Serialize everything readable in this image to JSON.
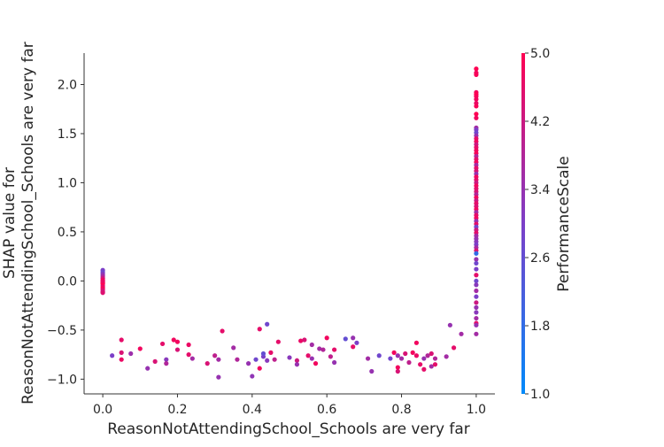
{
  "chart_data": {
    "type": "scatter",
    "title": "",
    "xlabel": "ReasonNotAttendingSchool_Schools are very far",
    "ylabel_lines": [
      "SHAP value for",
      "ReasonNotAttendingSchool_Schools are very far"
    ],
    "xlim": [
      -0.05,
      1.05
    ],
    "ylim": [
      -1.15,
      2.32
    ],
    "xticks": [
      0.0,
      0.2,
      0.4,
      0.6,
      0.8,
      1.0
    ],
    "xtick_labels": [
      "0.0",
      "0.2",
      "0.4",
      "0.6",
      "0.8",
      "1.0"
    ],
    "yticks": [
      -1.0,
      -0.5,
      0.0,
      0.5,
      1.0,
      1.5,
      2.0
    ],
    "ytick_labels": [
      "−1.0",
      "−0.5",
      "0.0",
      "0.5",
      "1.0",
      "1.5",
      "2.0"
    ],
    "grid": false,
    "colorbar": {
      "label": "PerformanceScale",
      "min": 1.0,
      "max": 5.0,
      "ticks": [
        1.0,
        1.8,
        2.6,
        3.4,
        4.2,
        5.0
      ],
      "tick_labels": [
        "1.0",
        "1.8",
        "2.6",
        "3.4",
        "4.2",
        "5.0"
      ],
      "color_low": "#008afb",
      "color_mid": "#7c3fc8",
      "color_high": "#ff0052"
    },
    "points": [
      [
        0.0,
        0.11,
        3.0
      ],
      [
        0.0,
        0.09,
        2.8
      ],
      [
        0.0,
        0.07,
        3.2
      ],
      [
        0.0,
        0.05,
        3.6
      ],
      [
        0.0,
        0.03,
        4.2
      ],
      [
        0.0,
        0.01,
        4.8
      ],
      [
        0.0,
        -0.01,
        4.6
      ],
      [
        0.0,
        -0.03,
        4.8
      ],
      [
        0.0,
        -0.05,
        4.4
      ],
      [
        0.0,
        -0.07,
        4.9
      ],
      [
        0.0,
        -0.09,
        4.6
      ],
      [
        0.0,
        -0.11,
        4.2
      ],
      [
        0.0,
        -0.12,
        4.5
      ],
      [
        0.0,
        -0.02,
        5.0
      ],
      [
        0.0,
        0.0,
        4.7
      ],
      [
        0.025,
        -0.76,
        3.0
      ],
      [
        0.05,
        -0.6,
        4.6
      ],
      [
        0.05,
        -0.73,
        4.4
      ],
      [
        0.05,
        -0.8,
        4.7
      ],
      [
        0.075,
        -0.74,
        3.5
      ],
      [
        0.1,
        -0.69,
        4.8
      ],
      [
        0.12,
        -0.89,
        3.4
      ],
      [
        0.14,
        -0.82,
        4.4
      ],
      [
        0.16,
        -0.64,
        4.6
      ],
      [
        0.17,
        -0.8,
        3.2
      ],
      [
        0.17,
        -0.84,
        3.8
      ],
      [
        0.19,
        -0.6,
        4.8
      ],
      [
        0.2,
        -0.62,
        4.8
      ],
      [
        0.2,
        -0.7,
        4.4
      ],
      [
        0.23,
        -0.65,
        4.7
      ],
      [
        0.23,
        -0.75,
        4.6
      ],
      [
        0.24,
        -0.79,
        3.6
      ],
      [
        0.28,
        -0.84,
        4.4
      ],
      [
        0.3,
        -0.76,
        4.0
      ],
      [
        0.31,
        -0.98,
        3.4
      ],
      [
        0.31,
        -0.8,
        3.6
      ],
      [
        0.32,
        -0.51,
        4.6
      ],
      [
        0.35,
        -0.68,
        3.6
      ],
      [
        0.36,
        -0.8,
        3.8
      ],
      [
        0.39,
        -0.84,
        3.4
      ],
      [
        0.4,
        -0.97,
        3.3
      ],
      [
        0.41,
        -0.8,
        2.8
      ],
      [
        0.42,
        -0.49,
        4.6
      ],
      [
        0.42,
        -0.89,
        4.8
      ],
      [
        0.43,
        -0.77,
        3.0
      ],
      [
        0.43,
        -0.74,
        2.6
      ],
      [
        0.44,
        -0.44,
        2.8
      ],
      [
        0.44,
        -0.81,
        3.2
      ],
      [
        0.45,
        -0.73,
        4.6
      ],
      [
        0.46,
        -0.8,
        4.0
      ],
      [
        0.47,
        -0.62,
        4.6
      ],
      [
        0.5,
        -0.78,
        3.2
      ],
      [
        0.52,
        -0.81,
        4.2
      ],
      [
        0.52,
        -0.85,
        3.4
      ],
      [
        0.53,
        -0.61,
        4.7
      ],
      [
        0.54,
        -0.6,
        4.4
      ],
      [
        0.55,
        -0.76,
        4.6
      ],
      [
        0.56,
        -0.79,
        3.4
      ],
      [
        0.56,
        -0.65,
        3.6
      ],
      [
        0.57,
        -0.84,
        4.8
      ],
      [
        0.58,
        -0.69,
        3.6
      ],
      [
        0.59,
        -0.7,
        3.8
      ],
      [
        0.6,
        -0.58,
        4.8
      ],
      [
        0.61,
        -0.77,
        4.0
      ],
      [
        0.62,
        -0.83,
        3.4
      ],
      [
        0.62,
        -0.7,
        4.6
      ],
      [
        0.65,
        -0.59,
        2.6
      ],
      [
        0.67,
        -0.67,
        4.6
      ],
      [
        0.67,
        -0.58,
        3.4
      ],
      [
        0.68,
        -0.63,
        3.0
      ],
      [
        0.71,
        -0.79,
        3.6
      ],
      [
        0.72,
        -0.92,
        3.4
      ],
      [
        0.74,
        -0.76,
        2.8
      ],
      [
        0.77,
        -0.79,
        2.8
      ],
      [
        0.78,
        -0.73,
        4.8
      ],
      [
        0.79,
        -0.76,
        3.4
      ],
      [
        0.79,
        -0.92,
        4.4
      ],
      [
        0.79,
        -0.88,
        4.8
      ],
      [
        0.8,
        -0.79,
        3.6
      ],
      [
        0.81,
        -0.74,
        4.4
      ],
      [
        0.82,
        -0.83,
        4.0
      ],
      [
        0.83,
        -0.73,
        4.8
      ],
      [
        0.84,
        -0.76,
        4.7
      ],
      [
        0.84,
        -0.63,
        4.8
      ],
      [
        0.85,
        -0.85,
        4.6
      ],
      [
        0.86,
        -0.79,
        3.4
      ],
      [
        0.86,
        -0.9,
        4.6
      ],
      [
        0.87,
        -0.76,
        3.8
      ],
      [
        0.88,
        -0.74,
        4.4
      ],
      [
        0.88,
        -0.87,
        3.6
      ],
      [
        0.89,
        -0.79,
        3.8
      ],
      [
        0.89,
        -0.85,
        4.6
      ],
      [
        0.92,
        -0.77,
        3.6
      ],
      [
        0.93,
        -0.45,
        3.4
      ],
      [
        0.94,
        -0.68,
        4.6
      ],
      [
        0.96,
        -0.54,
        3.6
      ],
      [
        1.0,
        2.16,
        5.0
      ],
      [
        1.0,
        2.12,
        4.8
      ],
      [
        1.0,
        2.1,
        4.9
      ],
      [
        1.0,
        1.92,
        4.8
      ],
      [
        1.0,
        1.9,
        5.0
      ],
      [
        1.0,
        1.88,
        4.9
      ],
      [
        1.0,
        1.85,
        4.8
      ],
      [
        1.0,
        1.81,
        4.7
      ],
      [
        1.0,
        1.78,
        4.9
      ],
      [
        1.0,
        1.7,
        5.0
      ],
      [
        1.0,
        1.66,
        4.8
      ],
      [
        1.0,
        1.56,
        3.6
      ],
      [
        1.0,
        1.54,
        3.0
      ],
      [
        1.0,
        1.51,
        2.8
      ],
      [
        1.0,
        1.48,
        3.4
      ],
      [
        1.0,
        1.45,
        4.6
      ],
      [
        1.0,
        1.42,
        4.8
      ],
      [
        1.0,
        1.39,
        4.2
      ],
      [
        1.0,
        1.36,
        4.6
      ],
      [
        1.0,
        1.33,
        4.8
      ],
      [
        1.0,
        1.3,
        4.9
      ],
      [
        1.0,
        1.27,
        3.8
      ],
      [
        1.0,
        1.24,
        4.6
      ],
      [
        1.0,
        1.21,
        4.8
      ],
      [
        1.0,
        1.18,
        3.6
      ],
      [
        1.0,
        1.15,
        4.6
      ],
      [
        1.0,
        1.12,
        4.4
      ],
      [
        1.0,
        1.09,
        3.4
      ],
      [
        1.0,
        1.06,
        4.8
      ],
      [
        1.0,
        1.03,
        4.6
      ],
      [
        1.0,
        1.0,
        4.2
      ],
      [
        1.0,
        0.97,
        4.8
      ],
      [
        1.0,
        0.94,
        4.6
      ],
      [
        1.0,
        0.91,
        4.4
      ],
      [
        1.0,
        0.88,
        3.8
      ],
      [
        1.0,
        0.85,
        4.8
      ],
      [
        1.0,
        0.82,
        4.2
      ],
      [
        1.0,
        0.79,
        4.6
      ],
      [
        1.0,
        0.76,
        4.4
      ],
      [
        1.0,
        0.73,
        4.8
      ],
      [
        1.0,
        0.7,
        3.6
      ],
      [
        1.0,
        0.67,
        4.6
      ],
      [
        1.0,
        0.64,
        4.8
      ],
      [
        1.0,
        0.61,
        3.4
      ],
      [
        1.0,
        0.58,
        4.6
      ],
      [
        1.0,
        0.55,
        2.8
      ],
      [
        1.0,
        0.52,
        4.2
      ],
      [
        1.0,
        0.49,
        4.6
      ],
      [
        1.0,
        0.46,
        3.6
      ],
      [
        1.0,
        0.43,
        3.4
      ],
      [
        1.0,
        0.4,
        3.2
      ],
      [
        1.0,
        0.37,
        3.0
      ],
      [
        1.0,
        0.34,
        3.6
      ],
      [
        1.0,
        0.31,
        4.4
      ],
      [
        1.0,
        0.28,
        1.8
      ],
      [
        1.0,
        0.22,
        3.4
      ],
      [
        1.0,
        0.18,
        2.8
      ],
      [
        1.0,
        0.12,
        3.0
      ],
      [
        1.0,
        0.06,
        4.6
      ],
      [
        1.0,
        0.0,
        2.8
      ],
      [
        1.0,
        -0.04,
        3.2
      ],
      [
        1.0,
        -0.1,
        3.6
      ],
      [
        1.0,
        -0.16,
        3.0
      ],
      [
        1.0,
        -0.22,
        4.2
      ],
      [
        1.0,
        -0.27,
        3.4
      ],
      [
        1.0,
        -0.32,
        3.2
      ],
      [
        1.0,
        -0.38,
        3.6
      ],
      [
        1.0,
        -0.43,
        4.6
      ],
      [
        1.0,
        -0.45,
        3.4
      ],
      [
        1.0,
        -0.54,
        3.6
      ]
    ]
  }
}
